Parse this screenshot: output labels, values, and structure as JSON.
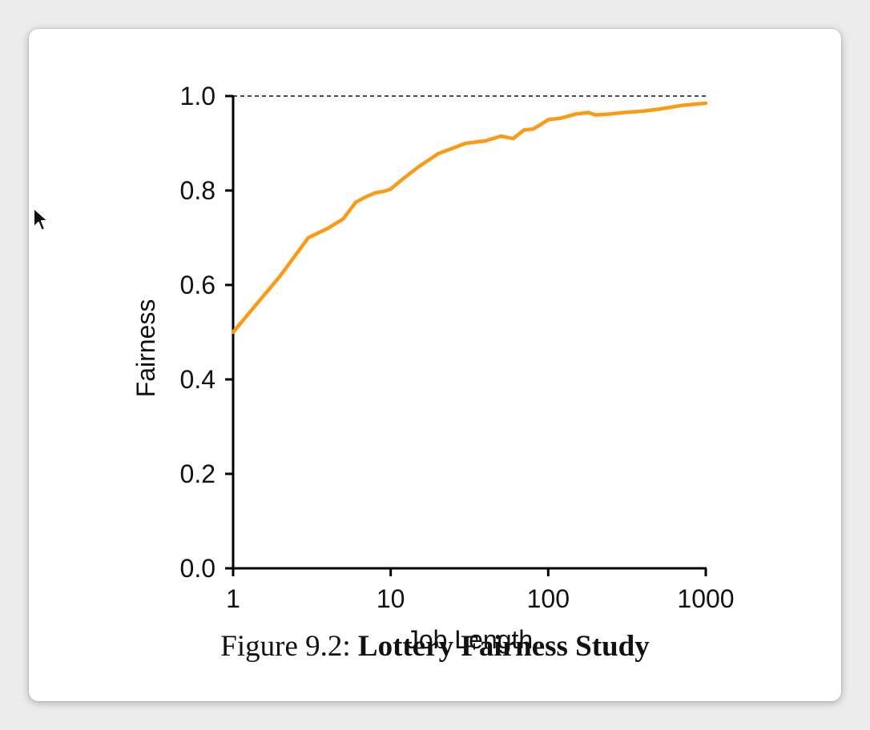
{
  "caption": {
    "prefix": "Figure 9.2:",
    "title": "Lottery Fairness Study"
  },
  "colors": {
    "series": "#fb9a14",
    "reference_line": "#111111",
    "axis": "#000000"
  },
  "icons": {
    "cursor": "arrow-cursor-icon"
  },
  "chart_data": {
    "type": "line",
    "title": "",
    "xlabel": "Job Length",
    "ylabel": "Fairness",
    "x_scale": "log",
    "xlim": [
      1,
      1000
    ],
    "ylim": [
      0,
      1.0
    ],
    "x_ticks": [
      "1",
      "10",
      "100",
      "1000"
    ],
    "y_ticks": [
      "0.0",
      "0.2",
      "0.4",
      "0.6",
      "0.8",
      "1.0"
    ],
    "grid": false,
    "legend": "none",
    "reference_line": {
      "y": 1.0,
      "style": "dashed"
    },
    "series": [
      {
        "x": [
          1,
          2,
          3,
          4,
          5,
          6,
          7,
          8,
          9,
          10,
          12,
          15,
          20,
          25,
          30,
          40,
          50,
          60,
          70,
          80,
          90,
          100,
          120,
          150,
          180,
          200,
          250,
          300,
          400,
          500,
          700,
          1000
        ],
        "y": [
          0.5,
          0.62,
          0.7,
          0.72,
          0.74,
          0.775,
          0.787,
          0.795,
          0.798,
          0.803,
          0.825,
          0.85,
          0.878,
          0.89,
          0.9,
          0.905,
          0.915,
          0.91,
          0.928,
          0.93,
          0.94,
          0.95,
          0.953,
          0.962,
          0.965,
          0.96,
          0.962,
          0.965,
          0.968,
          0.972,
          0.98,
          0.985
        ]
      }
    ]
  }
}
